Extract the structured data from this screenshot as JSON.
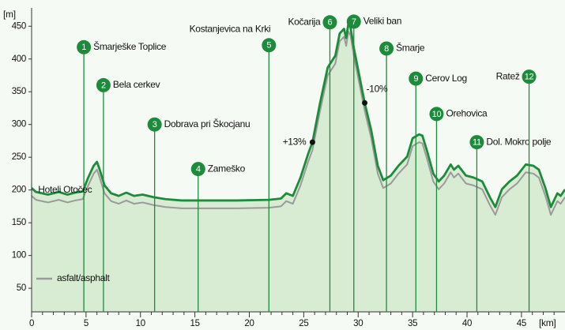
{
  "chart_data": {
    "type": "line",
    "y_unit": "[m]",
    "x_unit": "[km]",
    "x": [
      0,
      0.4,
      1.5,
      2.5,
      3.3,
      4.0,
      4.7,
      5.2,
      5.7,
      6.0,
      6.2,
      6.7,
      7.3,
      8.0,
      8.7,
      9.4,
      10.2,
      11.2,
      12.3,
      13.8,
      16.0,
      18.9,
      21.8,
      22.9,
      23.4,
      24.0,
      24.7,
      25.4,
      25.8,
      26.5,
      27.2,
      27.9,
      28.3,
      28.7,
      28.9,
      29.1,
      29.3,
      29.6,
      30.1,
      30.6,
      31.2,
      31.8,
      32.3,
      33.0,
      33.7,
      34.5,
      35.0,
      35.6,
      35.9,
      36.3,
      36.9,
      37.4,
      37.9,
      38.5,
      38.8,
      39.2,
      39.9,
      40.6,
      41.4,
      42.1,
      42.6,
      43.2,
      43.9,
      44.6,
      45.4,
      46.1,
      46.6,
      47.2,
      47.7,
      48.3,
      48.6,
      49.0
    ],
    "series": [
      {
        "color": "#1e8a3c",
        "fill": "#d8ecd4",
        "values": [
          203,
          197,
          193,
          197,
          193,
          196,
          198,
          219,
          237,
          243,
          234,
          207,
          195,
          191,
          196,
          191,
          193,
          189,
          186,
          184,
          184,
          184,
          185,
          187,
          195,
          191,
          219,
          255,
          273,
          333,
          387,
          405,
          439,
          446,
          432,
          454,
          448,
          417,
          375,
          333,
          291,
          237,
          215,
          222,
          237,
          251,
          279,
          285,
          283,
          261,
          225,
          213,
          222,
          239,
          231,
          237,
          222,
          219,
          213,
          189,
          174,
          201,
          213,
          222,
          239,
          237,
          231,
          203,
          174,
          195,
          191,
          201
        ]
      },
      {
        "name": "asfalt/asphalt",
        "color": "#9a9a9a",
        "values": [
          191,
          185,
          181,
          185,
          181,
          184,
          186,
          207,
          225,
          231,
          222,
          195,
          183,
          179,
          184,
          179,
          181,
          177,
          174,
          172,
          172,
          172,
          173,
          175,
          183,
          179,
          207,
          243,
          261,
          321,
          375,
          393,
          427,
          434,
          420,
          442,
          436,
          405,
          363,
          321,
          279,
          225,
          203,
          210,
          225,
          239,
          267,
          273,
          271,
          249,
          213,
          201,
          210,
          227,
          219,
          225,
          210,
          207,
          201,
          177,
          162,
          189,
          201,
          210,
          227,
          225,
          219,
          191,
          162,
          183,
          179,
          189
        ]
      }
    ],
    "xlim": [
      0,
      49
    ],
    "ylim": [
      14,
      478
    ],
    "xticks": [
      0,
      5,
      10,
      15,
      20,
      25,
      30,
      35,
      40,
      45
    ],
    "xminor": [
      1,
      2,
      3,
      4,
      6,
      7,
      8,
      9,
      11,
      12,
      13,
      14,
      16,
      17,
      18,
      19,
      21,
      22,
      23,
      24,
      26,
      27,
      28,
      29,
      31,
      32,
      33,
      34,
      36,
      37,
      38,
      39,
      41,
      42,
      43,
      44,
      46,
      47,
      48
    ],
    "yticks": [
      50,
      100,
      150,
      200,
      250,
      300,
      350,
      400,
      450
    ],
    "legend": "bottom-left",
    "waypoints": [
      {
        "number": "1",
        "name": "Šmarješke Toplice",
        "x": 4.8,
        "y": 418,
        "side": "right"
      },
      {
        "number": "2",
        "name": "Bela cerkev",
        "x": 6.6,
        "y": 360,
        "side": "right"
      },
      {
        "number": "3",
        "name": "Dobrava pri Škocjanu",
        "x": 11.3,
        "y": 300,
        "side": "right"
      },
      {
        "number": "4",
        "name": "Zameško",
        "x": 15.3,
        "y": 232,
        "side": "right"
      },
      {
        "number": "5",
        "name": "Kostanjevica na Krki",
        "x": 21.8,
        "y": 421,
        "side": "above-left"
      },
      {
        "number": "6",
        "name": "Kočarija",
        "x": 27.4,
        "y": 456,
        "side": "left"
      },
      {
        "number": "7",
        "name": "Veliki ban",
        "x": 29.6,
        "y": 457,
        "side": "right"
      },
      {
        "number": "8",
        "name": "Šmarje",
        "x": 32.6,
        "y": 416,
        "side": "right"
      },
      {
        "number": "9",
        "name": "Cerov Log",
        "x": 35.3,
        "y": 370,
        "side": "right"
      },
      {
        "number": "10",
        "name": "Orehovica",
        "x": 37.2,
        "y": 316,
        "side": "right"
      },
      {
        "number": "11",
        "name": "Dol. Mokro polje",
        "x": 40.9,
        "y": 273,
        "side": "right"
      },
      {
        "number": "12",
        "name": "Ratež",
        "x": 45.7,
        "y": 373,
        "side": "left"
      }
    ],
    "annotations": [
      {
        "text": "Hoteli Otočec",
        "x": 0.6,
        "y": 200
      },
      {
        "text": "+13%",
        "x": 25.8,
        "y": 273,
        "dot": true,
        "side": "left"
      },
      {
        "text": "-10%",
        "x": 30.6,
        "y": 333,
        "dot": true,
        "side": "above-right"
      }
    ]
  }
}
